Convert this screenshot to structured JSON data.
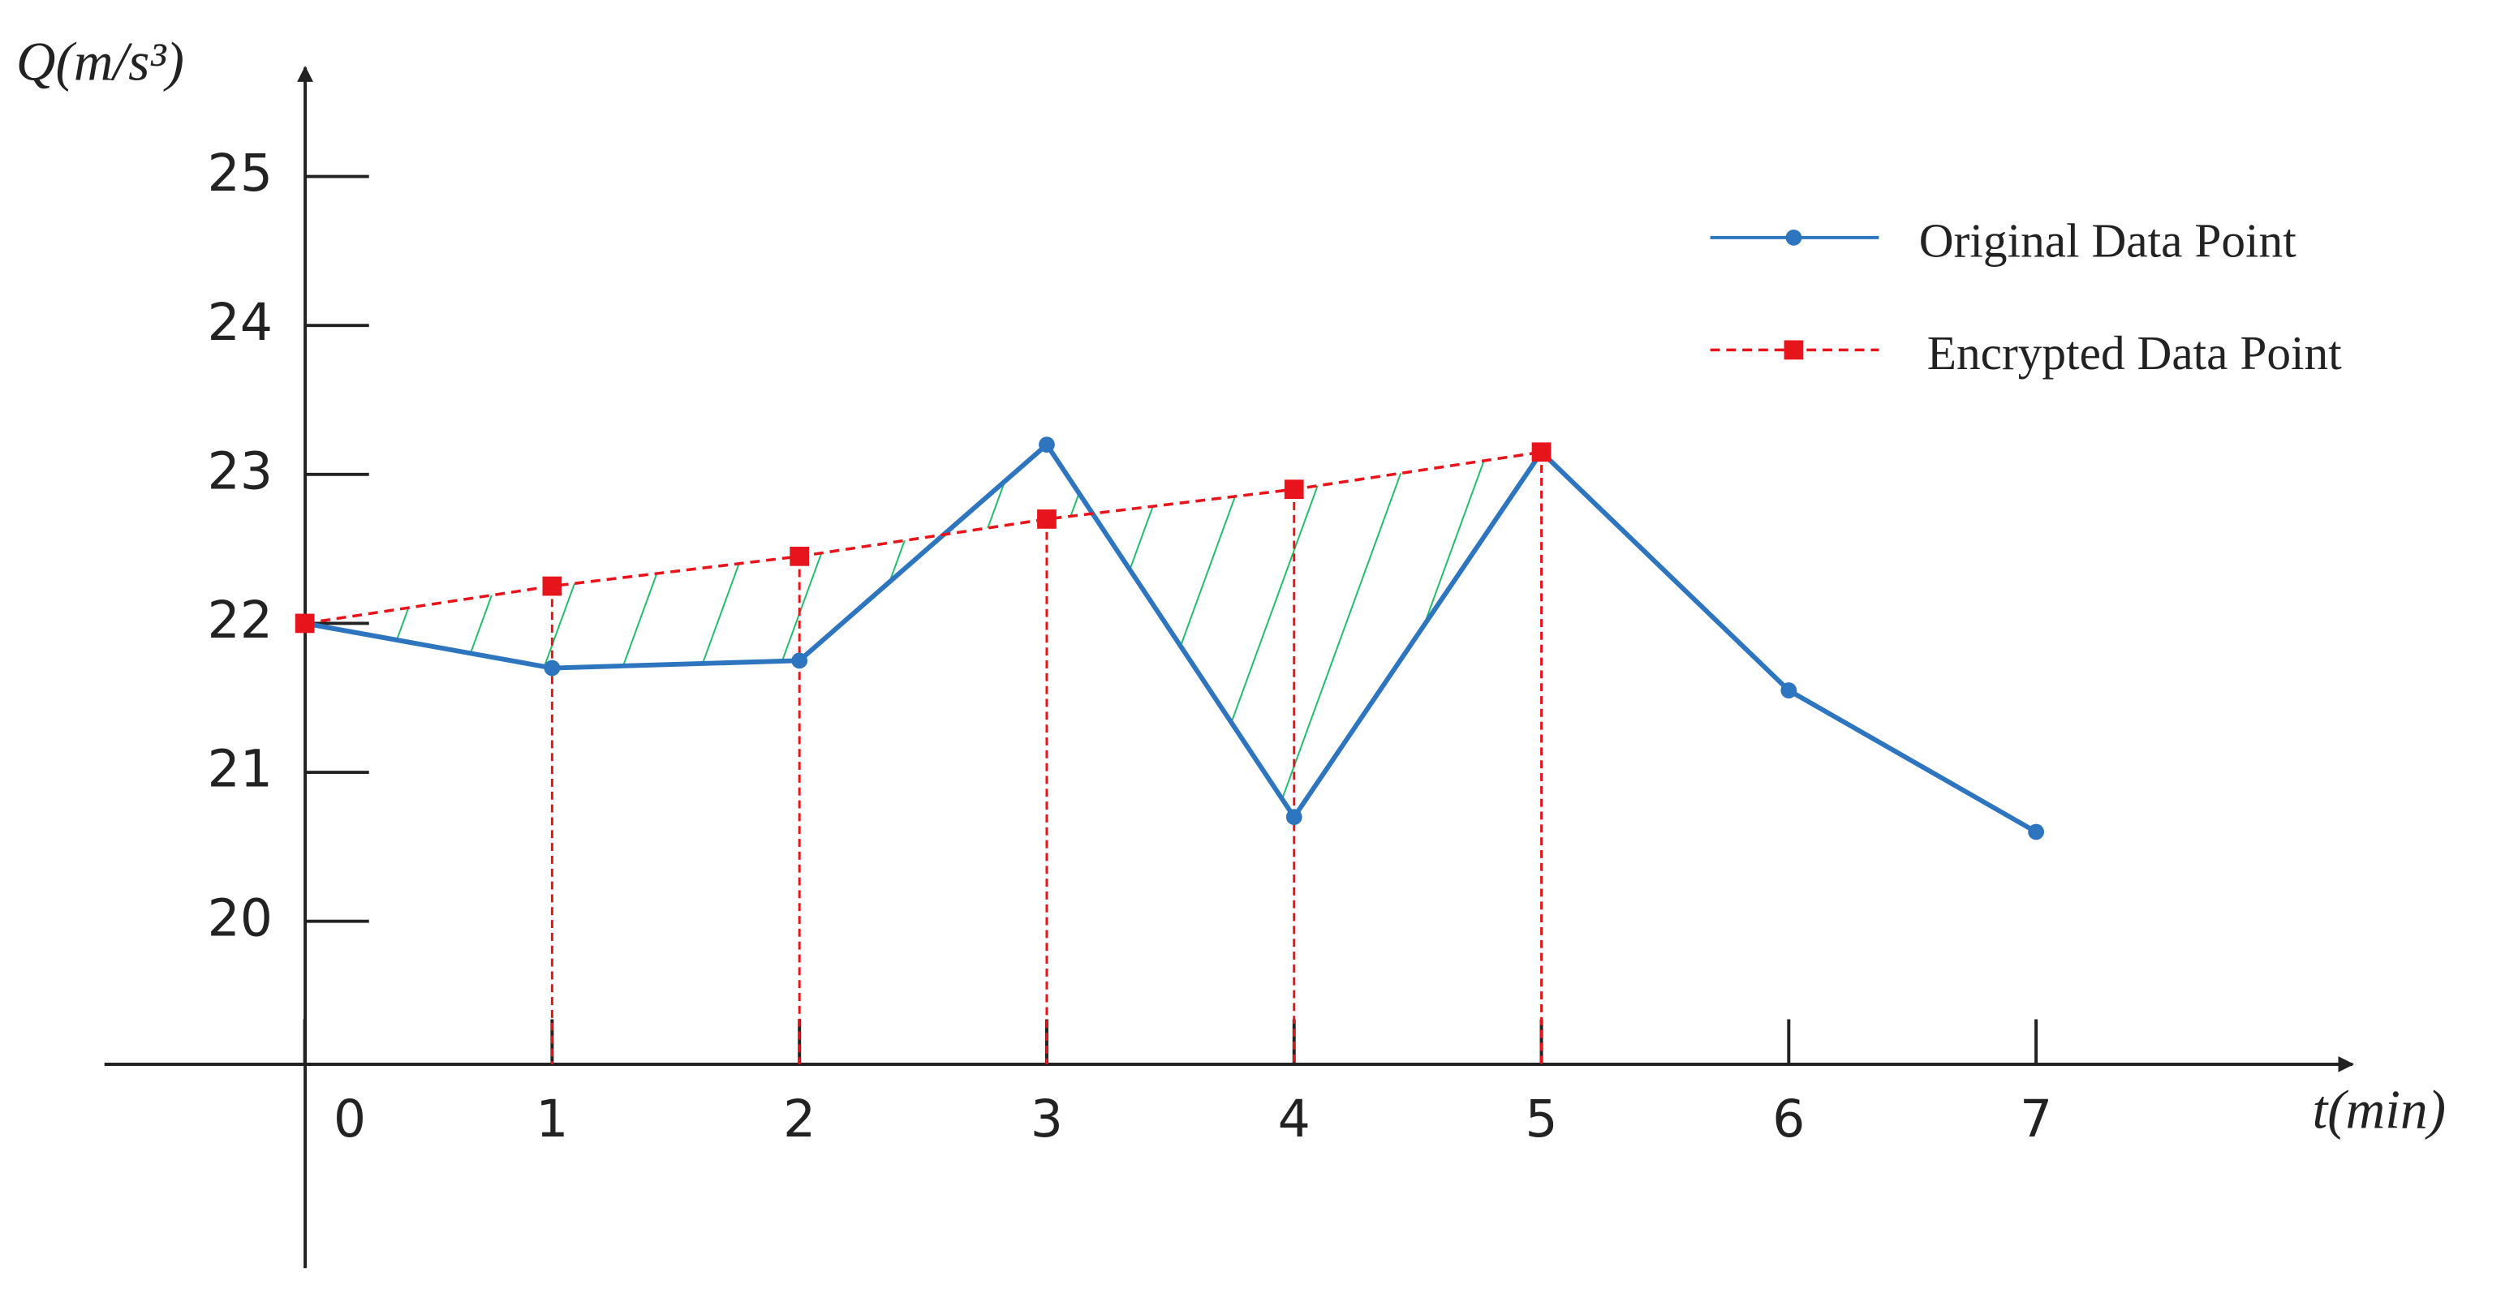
{
  "chart_data": {
    "type": "line",
    "y_label": "Q(m/s³)",
    "x_label": "t(min)",
    "x": [
      0,
      1,
      2,
      3,
      4,
      5,
      6,
      7
    ],
    "series": [
      {
        "name": "Original Data Point",
        "color": "#2e75c0",
        "values": [
          22.0,
          21.7,
          21.75,
          23.2,
          20.7,
          23.15,
          21.55,
          20.6
        ]
      },
      {
        "name": "Encrypted Data Point",
        "color": "#e8141b",
        "values": [
          22.0,
          22.25,
          22.45,
          22.7,
          22.9,
          23.15,
          null,
          null
        ]
      }
    ],
    "xlim": [
      -0.81,
      8.26
    ],
    "ylim": [
      19.04,
      25.7
    ],
    "xticks": [
      0,
      1,
      2,
      3,
      4,
      5,
      6,
      7
    ],
    "yticks": [
      20,
      21,
      22,
      23,
      24,
      25
    ],
    "legend": "upper right"
  }
}
